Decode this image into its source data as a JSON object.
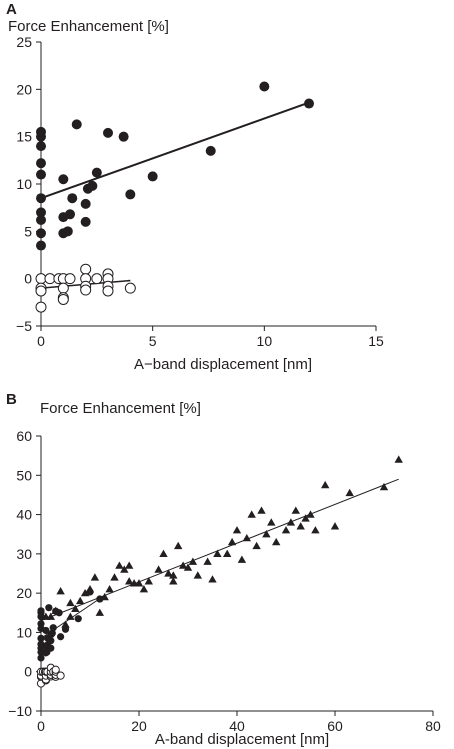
{
  "chart_data": [
    {
      "panel": "A",
      "type": "scatter",
      "ylabel": "Force Enhancement [%]",
      "xlabel": "A−band displacement [nm]",
      "xlim": [
        0,
        15
      ],
      "ylim": [
        -5,
        25
      ],
      "xticks": [
        "0",
        "5",
        "10",
        "15"
      ],
      "yticks": [
        "−5",
        "0",
        "5",
        "10",
        "15",
        "20",
        "25"
      ],
      "grid": false,
      "series": [
        {
          "marker": "filled-circle",
          "color": "#231f20",
          "points": [
            [
              0,
              15.5
            ],
            [
              0,
              15.0
            ],
            [
              0,
              14.0
            ],
            [
              0,
              12.2
            ],
            [
              0,
              11.0
            ],
            [
              0,
              8.5
            ],
            [
              0,
              7.0
            ],
            [
              0,
              6.2
            ],
            [
              0,
              4.8
            ],
            [
              0,
              3.5
            ],
            [
              1.0,
              10.5
            ],
            [
              1.0,
              6.5
            ],
            [
              1.0,
              4.8
            ],
            [
              1.2,
              5.0
            ],
            [
              1.3,
              6.8
            ],
            [
              1.4,
              8.5
            ],
            [
              1.6,
              16.3
            ],
            [
              2.0,
              7.9
            ],
            [
              2.0,
              6.0
            ],
            [
              2.1,
              9.5
            ],
            [
              2.3,
              9.8
            ],
            [
              2.5,
              11.2
            ],
            [
              3.0,
              15.4
            ],
            [
              3.7,
              15.0
            ],
            [
              4.0,
              8.9
            ],
            [
              5.0,
              10.8
            ],
            [
              7.6,
              13.5
            ],
            [
              10.0,
              20.3
            ],
            [
              12.0,
              18.5
            ]
          ]
        },
        {
          "marker": "open-circle",
          "color": "#231f20",
          "points": [
            [
              0,
              0
            ],
            [
              0,
              -1.0
            ],
            [
              0,
              -1.3
            ],
            [
              0,
              -3.0
            ],
            [
              0.4,
              0
            ],
            [
              0.8,
              0
            ],
            [
              1.0,
              0
            ],
            [
              1.0,
              -1.0
            ],
            [
              1.0,
              -2.0
            ],
            [
              1.0,
              -2.2
            ],
            [
              1.3,
              0
            ],
            [
              2.0,
              1.0
            ],
            [
              2.0,
              0
            ],
            [
              2.0,
              -0.8
            ],
            [
              2.0,
              -1.2
            ],
            [
              2.5,
              0
            ],
            [
              3.0,
              0.5
            ],
            [
              3.0,
              0
            ],
            [
              3.0,
              -0.8
            ],
            [
              3.0,
              -1.3
            ],
            [
              4.0,
              -1.0
            ]
          ]
        }
      ],
      "fit_lines": [
        {
          "x": [
            0,
            12
          ],
          "y": [
            8.5,
            18.6
          ],
          "width": "thick"
        },
        {
          "x": [
            0,
            4
          ],
          "y": [
            -1.0,
            -0.2
          ],
          "width": "thick"
        }
      ]
    },
    {
      "panel": "B",
      "type": "scatter",
      "ylabel": "Force Enhancement [%]",
      "xlabel": "A-band displacement [nm]",
      "xlim": [
        0,
        80
      ],
      "ylim": [
        -10,
        60
      ],
      "xticks": [
        "0",
        "20",
        "40",
        "60",
        "80"
      ],
      "yticks": [
        "−10",
        "0",
        "10",
        "20",
        "30",
        "40",
        "50",
        "60"
      ],
      "grid": false,
      "series": [
        {
          "marker": "triangle",
          "color": "#231f20",
          "points": [
            [
              1,
              14
            ],
            [
              2,
              14
            ],
            [
              3,
              15.5
            ],
            [
              4,
              20.5
            ],
            [
              5,
              12
            ],
            [
              6,
              14
            ],
            [
              6,
              17.5
            ],
            [
              7,
              16
            ],
            [
              8,
              18
            ],
            [
              9,
              20
            ],
            [
              10,
              21
            ],
            [
              11,
              24
            ],
            [
              12,
              15
            ],
            [
              13,
              19
            ],
            [
              14,
              21
            ],
            [
              15,
              24
            ],
            [
              16,
              27
            ],
            [
              17,
              26
            ],
            [
              18,
              27
            ],
            [
              18,
              23
            ],
            [
              19,
              22.5
            ],
            [
              20,
              22.5
            ],
            [
              21,
              21
            ],
            [
              22,
              23
            ],
            [
              24,
              26
            ],
            [
              25,
              30
            ],
            [
              26,
              25
            ],
            [
              27,
              23
            ],
            [
              27,
              24.5
            ],
            [
              28,
              32
            ],
            [
              29,
              27
            ],
            [
              30,
              26.5
            ],
            [
              31,
              28
            ],
            [
              32,
              24.5
            ],
            [
              34,
              28
            ],
            [
              35,
              23.5
            ],
            [
              36,
              30
            ],
            [
              38,
              30
            ],
            [
              39,
              33
            ],
            [
              40,
              36
            ],
            [
              41,
              28.5
            ],
            [
              42,
              34
            ],
            [
              43,
              40
            ],
            [
              44,
              32
            ],
            [
              45,
              41
            ],
            [
              46,
              35
            ],
            [
              47,
              38
            ],
            [
              48,
              33
            ],
            [
              50,
              36
            ],
            [
              51,
              38
            ],
            [
              52,
              41
            ],
            [
              53,
              37
            ],
            [
              54,
              39
            ],
            [
              55,
              40
            ],
            [
              56,
              36
            ],
            [
              58,
              47.5
            ],
            [
              60,
              37
            ],
            [
              63,
              45.5
            ],
            [
              70,
              47
            ],
            [
              73,
              54
            ]
          ]
        },
        {
          "marker": "filled-circle",
          "color": "#231f20",
          "points": [
            [
              0,
              3.5
            ],
            [
              0,
              5
            ],
            [
              0,
              6
            ],
            [
              0,
              7
            ],
            [
              0,
              8.5
            ],
            [
              0,
              11
            ],
            [
              0,
              12.2
            ],
            [
              0,
              14
            ],
            [
              0,
              15
            ],
            [
              0,
              15.5
            ],
            [
              1,
              4.8
            ],
            [
              1,
              6.5
            ],
            [
              1,
              10.5
            ],
            [
              1.2,
              5
            ],
            [
              1.3,
              6.8
            ],
            [
              1.4,
              8.5
            ],
            [
              1.6,
              16.3
            ],
            [
              2,
              6
            ],
            [
              2,
              7.9
            ],
            [
              2.1,
              9.5
            ],
            [
              2.3,
              9.8
            ],
            [
              2.5,
              11.2
            ],
            [
              3,
              15.4
            ],
            [
              3.7,
              15
            ],
            [
              4,
              8.9
            ],
            [
              5,
              10.8
            ],
            [
              7.6,
              13.5
            ],
            [
              10,
              20.3
            ],
            [
              12,
              18.5
            ]
          ]
        },
        {
          "marker": "open-circle",
          "color": "#231f20",
          "points": [
            [
              0,
              -3
            ],
            [
              0,
              -1.3
            ],
            [
              0,
              -1
            ],
            [
              0,
              0
            ],
            [
              0.4,
              0
            ],
            [
              0.8,
              0
            ],
            [
              1,
              -2.2
            ],
            [
              1,
              -2
            ],
            [
              1,
              -1
            ],
            [
              1,
              0
            ],
            [
              1.3,
              0
            ],
            [
              2,
              -1.2
            ],
            [
              2,
              -0.8
            ],
            [
              2,
              0
            ],
            [
              2,
              1
            ],
            [
              2.5,
              0
            ],
            [
              3,
              -1.3
            ],
            [
              3,
              -0.8
            ],
            [
              3,
              0
            ],
            [
              3,
              0.5
            ],
            [
              4,
              -1
            ]
          ]
        }
      ],
      "fit_lines": [
        {
          "x": [
            0,
            73
          ],
          "y": [
            13,
            49
          ],
          "width": "thin"
        },
        {
          "x": [
            0,
            12
          ],
          "y": [
            8.5,
            18.6
          ],
          "width": "thin"
        }
      ]
    }
  ]
}
